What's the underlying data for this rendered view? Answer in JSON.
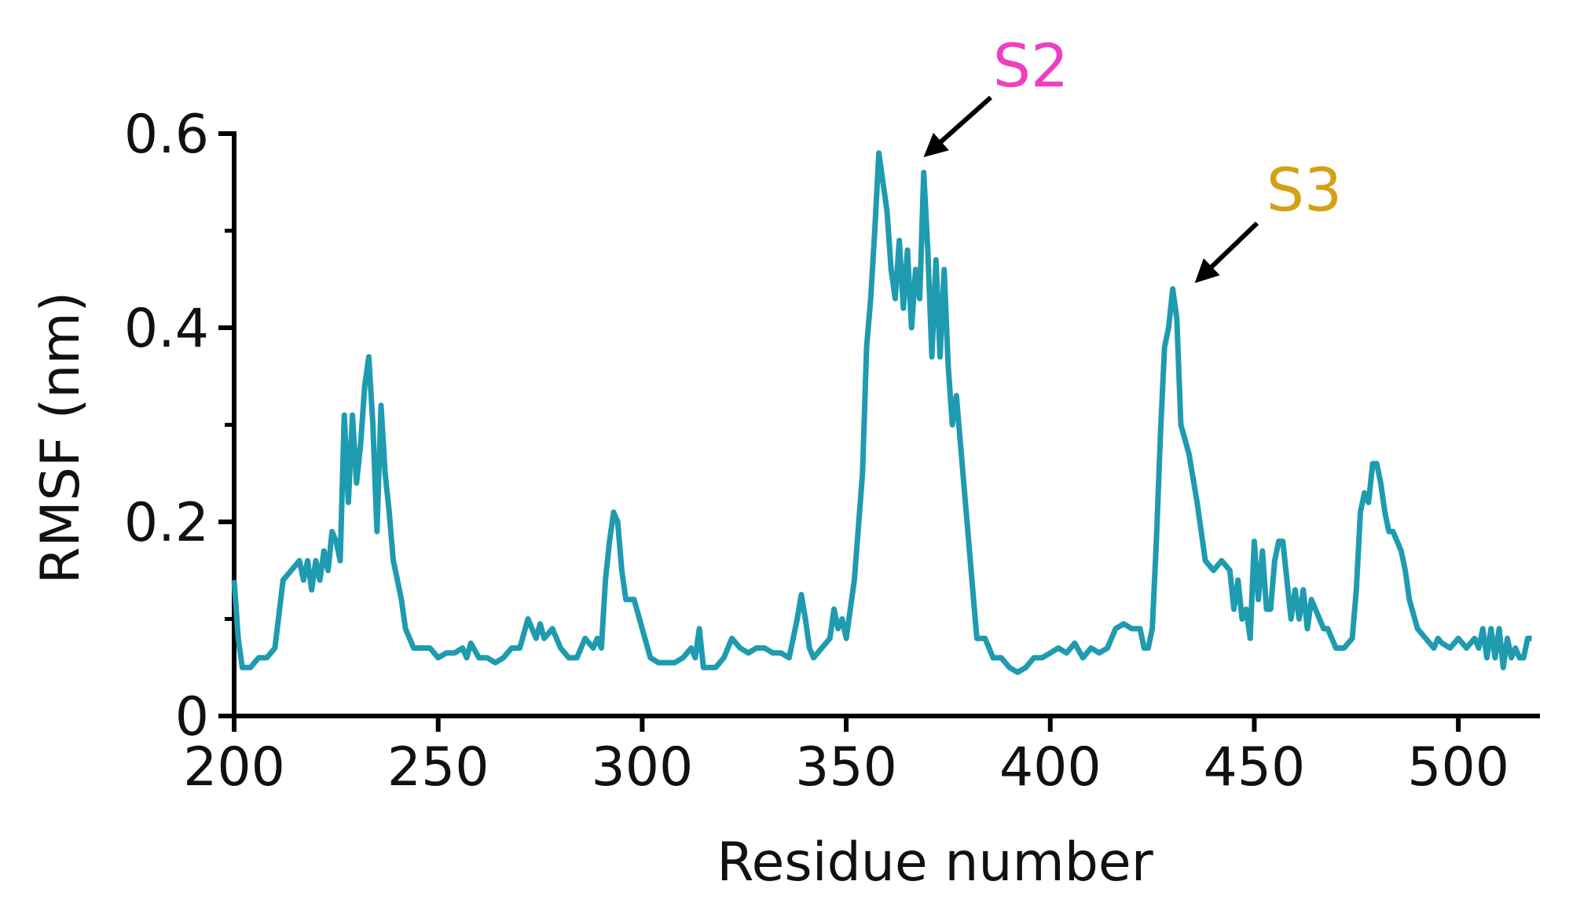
{
  "chart_data": {
    "type": "line",
    "x_label": "Residue number",
    "y_label": "RMSF (nm)",
    "color": "#1f9bb0",
    "xlim": [
      200,
      520
    ],
    "ylim": [
      0,
      0.6
    ],
    "xticks": [
      200,
      250,
      300,
      350,
      400,
      450,
      500
    ],
    "yticks": [
      0,
      0.2,
      0.4,
      0.6
    ],
    "yticks_minor": [
      0.1,
      0.3,
      0.5
    ],
    "annotations": [
      {
        "text": "S2",
        "color": "#ee3fc2"
      },
      {
        "text": "S3",
        "color": "#d4a017"
      }
    ],
    "x": [
      200,
      201,
      202,
      204,
      206,
      208,
      210,
      212,
      214,
      216,
      217,
      218,
      219,
      220,
      221,
      222,
      223,
      224,
      225,
      226,
      227,
      228,
      229,
      230,
      231,
      232,
      233,
      234,
      235,
      236,
      237,
      238,
      239,
      240,
      241,
      242,
      244,
      246,
      248,
      250,
      252,
      254,
      256,
      257,
      258,
      260,
      262,
      264,
      266,
      268,
      270,
      272,
      274,
      275,
      276,
      278,
      280,
      282,
      284,
      286,
      288,
      289,
      290,
      291,
      292,
      293,
      294,
      295,
      296,
      298,
      300,
      302,
      304,
      306,
      308,
      310,
      312,
      313,
      314,
      315,
      316,
      318,
      320,
      322,
      324,
      326,
      328,
      330,
      332,
      334,
      336,
      338,
      339,
      340,
      341,
      342,
      344,
      346,
      347,
      348,
      349,
      350,
      352,
      354,
      355,
      356,
      357,
      358,
      359,
      360,
      361,
      362,
      363,
      364,
      365,
      366,
      367,
      368,
      369,
      370,
      371,
      372,
      373,
      374,
      375,
      376,
      377,
      378,
      380,
      382,
      384,
      386,
      388,
      390,
      392,
      394,
      396,
      398,
      400,
      402,
      404,
      406,
      408,
      410,
      412,
      414,
      416,
      418,
      420,
      422,
      423,
      424,
      425,
      426,
      427,
      428,
      429,
      430,
      431,
      432,
      434,
      436,
      437,
      438,
      440,
      442,
      444,
      445,
      446,
      447,
      448,
      449,
      450,
      451,
      452,
      453,
      454,
      455,
      456,
      457,
      458,
      459,
      460,
      461,
      462,
      463,
      464,
      465,
      466,
      467,
      468,
      470,
      472,
      474,
      475,
      476,
      477,
      478,
      479,
      480,
      481,
      482,
      483,
      484,
      486,
      487,
      488,
      490,
      492,
      494,
      495,
      496,
      498,
      500,
      502,
      504,
      505,
      506,
      507,
      508,
      509,
      510,
      511,
      512,
      513,
      514,
      515,
      516,
      517,
      518
    ],
    "values": [
      0.14,
      0.08,
      0.05,
      0.05,
      0.06,
      0.06,
      0.07,
      0.14,
      0.15,
      0.16,
      0.14,
      0.16,
      0.13,
      0.16,
      0.14,
      0.17,
      0.15,
      0.19,
      0.18,
      0.16,
      0.31,
      0.22,
      0.31,
      0.24,
      0.28,
      0.34,
      0.37,
      0.3,
      0.19,
      0.32,
      0.25,
      0.21,
      0.16,
      0.14,
      0.12,
      0.09,
      0.07,
      0.07,
      0.07,
      0.06,
      0.065,
      0.065,
      0.07,
      0.06,
      0.075,
      0.06,
      0.06,
      0.055,
      0.06,
      0.07,
      0.07,
      0.1,
      0.08,
      0.095,
      0.08,
      0.09,
      0.07,
      0.06,
      0.06,
      0.08,
      0.07,
      0.08,
      0.07,
      0.14,
      0.18,
      0.21,
      0.2,
      0.15,
      0.12,
      0.12,
      0.09,
      0.06,
      0.055,
      0.055,
      0.055,
      0.06,
      0.07,
      0.06,
      0.09,
      0.05,
      0.05,
      0.05,
      0.06,
      0.08,
      0.07,
      0.065,
      0.07,
      0.07,
      0.065,
      0.065,
      0.06,
      0.1,
      0.125,
      0.1,
      0.07,
      0.06,
      0.07,
      0.08,
      0.11,
      0.09,
      0.1,
      0.08,
      0.14,
      0.25,
      0.38,
      0.43,
      0.5,
      0.58,
      0.55,
      0.52,
      0.46,
      0.43,
      0.49,
      0.42,
      0.48,
      0.4,
      0.46,
      0.43,
      0.56,
      0.48,
      0.37,
      0.47,
      0.37,
      0.46,
      0.36,
      0.3,
      0.33,
      0.28,
      0.18,
      0.08,
      0.08,
      0.06,
      0.06,
      0.05,
      0.045,
      0.05,
      0.06,
      0.06,
      0.065,
      0.07,
      0.065,
      0.075,
      0.06,
      0.07,
      0.065,
      0.07,
      0.09,
      0.095,
      0.09,
      0.09,
      0.07,
      0.07,
      0.09,
      0.18,
      0.29,
      0.38,
      0.4,
      0.44,
      0.41,
      0.3,
      0.27,
      0.22,
      0.19,
      0.16,
      0.15,
      0.16,
      0.15,
      0.11,
      0.14,
      0.1,
      0.11,
      0.08,
      0.18,
      0.12,
      0.17,
      0.11,
      0.11,
      0.16,
      0.18,
      0.18,
      0.14,
      0.1,
      0.13,
      0.1,
      0.13,
      0.09,
      0.12,
      0.11,
      0.1,
      0.09,
      0.09,
      0.07,
      0.07,
      0.08,
      0.13,
      0.21,
      0.23,
      0.22,
      0.26,
      0.26,
      0.24,
      0.21,
      0.19,
      0.19,
      0.17,
      0.15,
      0.12,
      0.09,
      0.08,
      0.07,
      0.08,
      0.075,
      0.07,
      0.08,
      0.07,
      0.08,
      0.07,
      0.09,
      0.06,
      0.09,
      0.06,
      0.09,
      0.05,
      0.08,
      0.06,
      0.07,
      0.06,
      0.06,
      0.08,
      0.08
    ]
  }
}
